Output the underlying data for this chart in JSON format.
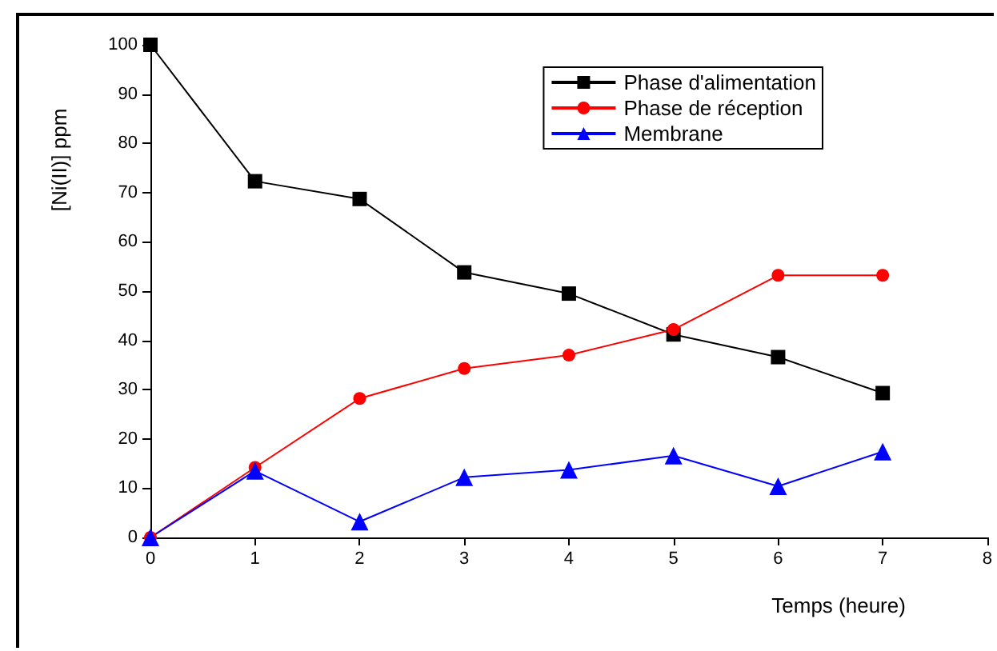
{
  "chart_data": {
    "type": "line",
    "xlabel": "Temps (heure)",
    "ylabel": "[Ni(II)] ppm",
    "x": [
      0,
      1,
      2,
      3,
      4,
      5,
      6,
      7
    ],
    "series": [
      {
        "name": "Phase d'alimentation",
        "color": "#000000",
        "marker": "square",
        "values": [
          100,
          72.3,
          68.7,
          53.8,
          49.5,
          41.2,
          36.6,
          29.3
        ]
      },
      {
        "name": "Phase de réception",
        "color": "#ff0000",
        "marker": "circle",
        "values": [
          0,
          14.2,
          28.2,
          34.3,
          37,
          42.2,
          53.2,
          53.2
        ]
      },
      {
        "name": "Membrane",
        "color": "#0000ff",
        "marker": "triangle",
        "values": [
          0,
          13.5,
          3.2,
          12.2,
          13.7,
          16.6,
          10.4,
          17.4
        ]
      }
    ],
    "xlim": [
      0,
      8
    ],
    "xticks": [
      0,
      1,
      2,
      3,
      4,
      5,
      6,
      7,
      8
    ],
    "ylim": [
      0,
      100
    ],
    "yticks": [
      0,
      10,
      20,
      30,
      40,
      50,
      60,
      70,
      80,
      90,
      100
    ],
    "legend": "top right",
    "grid": false,
    "line_style": "solid"
  }
}
